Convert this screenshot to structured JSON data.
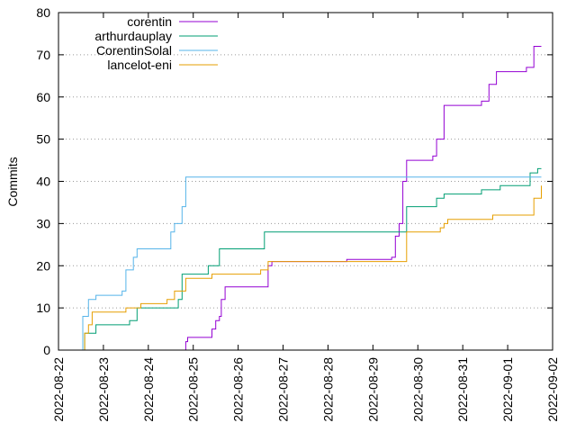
{
  "chart_data": {
    "type": "line",
    "title": "",
    "xlabel": "",
    "ylabel": "Commits",
    "ylim": [
      0,
      80
    ],
    "yticks": [
      0,
      10,
      20,
      30,
      40,
      50,
      60,
      70,
      80
    ],
    "xlim": [
      "2022-08-22",
      "2022-09-02"
    ],
    "xticks": [
      "2022-08-22",
      "2022-08-23",
      "2022-08-24",
      "2022-08-25",
      "2022-08-26",
      "2022-08-27",
      "2022-08-28",
      "2022-08-29",
      "2022-08-30",
      "2022-08-31",
      "2022-09-01",
      "2022-09-02"
    ],
    "grid": "horizontal dotted",
    "legend_position": "top-left",
    "step": true,
    "series": [
      {
        "name": "corentin",
        "color": "#9400d3",
        "points": [
          [
            "2022-08-24 18:00",
            0
          ],
          [
            "2022-08-24 20:00",
            2
          ],
          [
            "2022-08-24 21:00",
            3
          ],
          [
            "2022-08-25 10:00",
            5
          ],
          [
            "2022-08-25 12:00",
            7
          ],
          [
            "2022-08-25 14:00",
            8
          ],
          [
            "2022-08-25 15:00",
            12
          ],
          [
            "2022-08-25 17:00",
            15
          ],
          [
            "2022-08-26 16:00",
            20
          ],
          [
            "2022-08-26 18:00",
            21
          ],
          [
            "2022-08-28 10:00",
            21.5
          ],
          [
            "2022-08-29 10:00",
            22
          ],
          [
            "2022-08-29 12:00",
            27
          ],
          [
            "2022-08-29 14:00",
            30
          ],
          [
            "2022-08-29 16:00",
            40
          ],
          [
            "2022-08-29 18:00",
            45
          ],
          [
            "2022-08-30 08:00",
            46
          ],
          [
            "2022-08-30 10:00",
            50
          ],
          [
            "2022-08-30 14:00",
            58
          ],
          [
            "2022-08-31 10:00",
            59
          ],
          [
            "2022-08-31 14:00",
            63
          ],
          [
            "2022-08-31 18:00",
            66
          ],
          [
            "2022-09-01 10:00",
            67
          ],
          [
            "2022-09-01 14:00",
            72
          ],
          [
            "2022-09-01 18:00",
            72
          ]
        ]
      },
      {
        "name": "arthurdauplay",
        "color": "#009e73",
        "points": [
          [
            "2022-08-22 12:00",
            0
          ],
          [
            "2022-08-22 14:00",
            4
          ],
          [
            "2022-08-22 20:00",
            6
          ],
          [
            "2022-08-23 14:00",
            7
          ],
          [
            "2022-08-23 18:00",
            10
          ],
          [
            "2022-08-24 16:00",
            12
          ],
          [
            "2022-08-24 18:00",
            18
          ],
          [
            "2022-08-25 08:00",
            20
          ],
          [
            "2022-08-25 14:00",
            24
          ],
          [
            "2022-08-26 14:00",
            28
          ],
          [
            "2022-08-29 18:00",
            34
          ],
          [
            "2022-08-30 10:00",
            36
          ],
          [
            "2022-08-30 14:00",
            37
          ],
          [
            "2022-08-31 10:00",
            38
          ],
          [
            "2022-08-31 20:00",
            39
          ],
          [
            "2022-09-01 12:00",
            42
          ],
          [
            "2022-09-01 16:00",
            43
          ],
          [
            "2022-09-01 18:00",
            43
          ]
        ]
      },
      {
        "name": "CorentinSolal",
        "color": "#56b4e9",
        "points": [
          [
            "2022-08-22 12:00",
            0
          ],
          [
            "2022-08-22 13:00",
            8
          ],
          [
            "2022-08-22 16:00",
            12
          ],
          [
            "2022-08-22 20:00",
            13
          ],
          [
            "2022-08-23 10:00",
            14
          ],
          [
            "2022-08-23 12:00",
            19
          ],
          [
            "2022-08-23 16:00",
            22
          ],
          [
            "2022-08-23 18:00",
            24
          ],
          [
            "2022-08-24 12:00",
            28
          ],
          [
            "2022-08-24 14:00",
            30
          ],
          [
            "2022-08-24 18:00",
            34
          ],
          [
            "2022-08-24 20:00",
            41
          ],
          [
            "2022-09-01 18:00",
            41
          ]
        ]
      },
      {
        "name": "lancelot-eni",
        "color": "#e69f00",
        "points": [
          [
            "2022-08-22 12:00",
            0
          ],
          [
            "2022-08-22 14:00",
            4
          ],
          [
            "2022-08-22 16:00",
            6
          ],
          [
            "2022-08-22 18:00",
            9
          ],
          [
            "2022-08-23 12:00",
            10
          ],
          [
            "2022-08-23 20:00",
            11
          ],
          [
            "2022-08-24 10:00",
            12
          ],
          [
            "2022-08-24 14:00",
            14
          ],
          [
            "2022-08-24 20:00",
            17
          ],
          [
            "2022-08-25 10:00",
            18
          ],
          [
            "2022-08-26 12:00",
            19
          ],
          [
            "2022-08-26 16:00",
            21
          ],
          [
            "2022-08-29 18:00",
            28
          ],
          [
            "2022-08-30 12:00",
            29
          ],
          [
            "2022-08-30 14:00",
            30
          ],
          [
            "2022-08-30 16:00",
            31
          ],
          [
            "2022-08-31 16:00",
            32
          ],
          [
            "2022-09-01 14:00",
            36
          ],
          [
            "2022-09-01 18:00",
            39
          ]
        ]
      }
    ]
  }
}
